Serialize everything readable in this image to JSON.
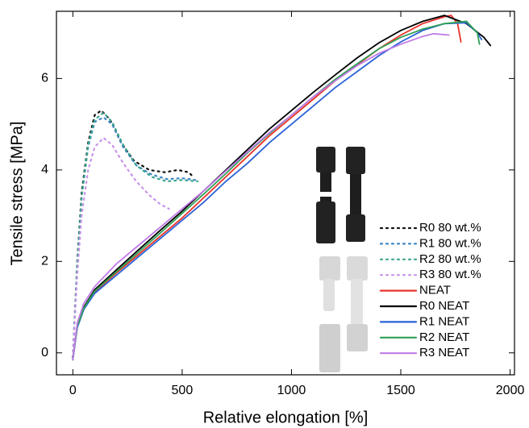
{
  "chart_data": {
    "type": "line",
    "x_label": "Relative elongation [%]",
    "y_label": "Tensile stress [MPa]",
    "xlim": [
      -75,
      2020
    ],
    "ylim": [
      -0.48,
      7.47
    ],
    "xticks": [
      0,
      500,
      1000,
      1500,
      2000
    ],
    "yticks": [
      0,
      2,
      4,
      6
    ],
    "legend": "lower right",
    "series": [
      {
        "name": "R0 80 wt.%",
        "color": "#111111",
        "style": "dotted",
        "x": [
          0,
          20,
          40,
          70,
          100,
          130,
          170,
          220,
          280,
          350,
          420,
          480,
          530,
          550
        ],
        "values": [
          -0.1,
          2.0,
          3.5,
          4.6,
          5.2,
          5.3,
          5.1,
          4.6,
          4.2,
          4.0,
          3.95,
          4.0,
          3.95,
          3.85
        ]
      },
      {
        "name": "R1 80 wt.%",
        "color": "#3f86c9",
        "style": "dotted",
        "x": [
          0,
          20,
          40,
          70,
          100,
          140,
          180,
          230,
          290,
          360,
          430,
          500,
          560
        ],
        "values": [
          -0.1,
          1.9,
          3.4,
          4.5,
          5.05,
          5.15,
          5.0,
          4.5,
          4.1,
          3.9,
          3.8,
          3.82,
          3.78
        ]
      },
      {
        "name": "R2 80 wt.%",
        "color": "#3aa58c",
        "style": "dotted",
        "x": [
          0,
          20,
          40,
          70,
          100,
          140,
          180,
          230,
          290,
          360,
          430,
          500,
          570
        ],
        "values": [
          -0.1,
          1.9,
          3.4,
          4.55,
          5.1,
          5.25,
          5.05,
          4.55,
          4.1,
          3.85,
          3.75,
          3.78,
          3.75
        ]
      },
      {
        "name": "R3 80 wt.%",
        "color": "#c893ec",
        "style": "dotted",
        "x": [
          0,
          20,
          40,
          70,
          100,
          140,
          180,
          230,
          290,
          350,
          400,
          440
        ],
        "values": [
          -0.1,
          1.7,
          3.0,
          4.0,
          4.5,
          4.7,
          4.55,
          4.15,
          3.75,
          3.45,
          3.25,
          3.15
        ]
      },
      {
        "name": "NEAT",
        "color": "#e8332a",
        "style": "solid",
        "x": [
          0,
          20,
          50,
          100,
          200,
          300,
          400,
          500,
          600,
          700,
          800,
          900,
          1000,
          1100,
          1200,
          1300,
          1400,
          1500,
          1600,
          1700,
          1730,
          1760,
          1775
        ],
        "values": [
          -0.15,
          0.6,
          1.0,
          1.33,
          1.75,
          2.15,
          2.55,
          2.95,
          3.4,
          3.85,
          4.3,
          4.75,
          5.15,
          5.55,
          5.95,
          6.3,
          6.65,
          6.95,
          7.2,
          7.35,
          7.38,
          7.2,
          6.8
        ]
      },
      {
        "name": "R0 NEAT",
        "color": "#000000",
        "style": "solid",
        "x": [
          0,
          20,
          50,
          100,
          200,
          300,
          400,
          500,
          600,
          700,
          800,
          900,
          1000,
          1100,
          1200,
          1300,
          1400,
          1500,
          1600,
          1700,
          1800,
          1880,
          1910
        ],
        "values": [
          -0.15,
          0.6,
          1.0,
          1.38,
          1.82,
          2.25,
          2.68,
          3.1,
          3.55,
          4.0,
          4.45,
          4.9,
          5.3,
          5.7,
          6.08,
          6.45,
          6.78,
          7.05,
          7.25,
          7.38,
          7.2,
          6.9,
          6.72
        ]
      },
      {
        "name": "R1 NEAT",
        "color": "#2a62d6",
        "style": "solid",
        "x": [
          0,
          20,
          50,
          100,
          200,
          300,
          400,
          500,
          600,
          700,
          800,
          900,
          1000,
          1100,
          1200,
          1300,
          1400,
          1500,
          1600,
          1700,
          1800,
          1850,
          1870
        ],
        "values": [
          -0.15,
          0.55,
          0.95,
          1.3,
          1.7,
          2.1,
          2.5,
          2.9,
          3.3,
          3.75,
          4.15,
          4.6,
          5.0,
          5.4,
          5.8,
          6.15,
          6.5,
          6.8,
          7.05,
          7.2,
          7.22,
          7.0,
          6.85
        ]
      },
      {
        "name": "R2 NEAT",
        "color": "#2fa055",
        "style": "solid",
        "x": [
          0,
          20,
          50,
          100,
          200,
          300,
          400,
          500,
          600,
          700,
          800,
          900,
          1000,
          1100,
          1200,
          1300,
          1400,
          1500,
          1600,
          1700,
          1800,
          1850,
          1860
        ],
        "values": [
          -0.15,
          0.58,
          0.98,
          1.35,
          1.78,
          2.2,
          2.62,
          3.05,
          3.48,
          3.92,
          4.38,
          4.8,
          5.2,
          5.6,
          5.98,
          6.32,
          6.65,
          6.9,
          7.08,
          7.2,
          7.25,
          7.0,
          6.75
        ]
      },
      {
        "name": "R3 NEAT",
        "color": "#c07ae8",
        "style": "solid",
        "x": [
          0,
          20,
          50,
          100,
          200,
          300,
          400,
          500,
          600,
          700,
          800,
          900,
          1000,
          1100,
          1200,
          1300,
          1400,
          1500,
          1600,
          1650,
          1720
        ],
        "values": [
          -0.15,
          0.65,
          1.08,
          1.45,
          1.95,
          2.35,
          2.75,
          3.15,
          3.55,
          3.98,
          4.4,
          4.82,
          5.2,
          5.6,
          5.95,
          6.28,
          6.55,
          6.75,
          6.92,
          6.98,
          6.95
        ]
      }
    ]
  }
}
